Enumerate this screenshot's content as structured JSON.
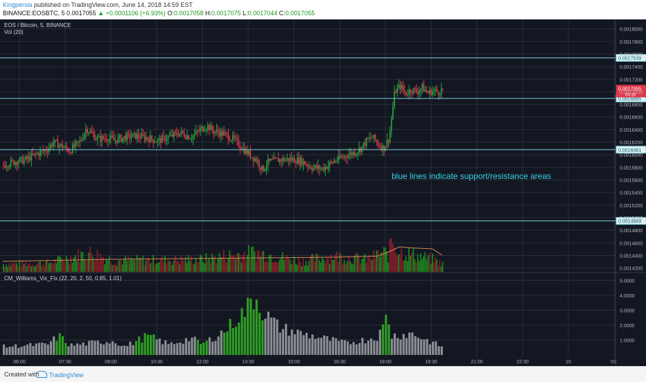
{
  "header": {
    "author": "Kingpersia",
    "published_text": "published on TradingView.com, June 14, 2018 14:59 EST",
    "ticker": "BINANCE:EOSBTC, 5",
    "last": "0.0017055",
    "change": "▲ +0.0001106 (+6.93%)",
    "o_label": "O:",
    "o_val": "0.0017058",
    "h_label": "H:",
    "h_val": "0.0017075",
    "l_label": "L:",
    "l_val": "0.0017044",
    "c_label": "C:",
    "c_val": "0.0017055"
  },
  "footer": {
    "created_with": "Created with",
    "brand": "TradingView"
  },
  "colors": {
    "bg": "#131722",
    "up": "#26a541",
    "down": "#e0384b",
    "hline": "#7fd0e0",
    "grid": "#2a2e39",
    "vix": "#8a8d93",
    "vix_hi": "#2e9e23",
    "vol_up": "#1e8a1e",
    "vol_down": "#8b1e28",
    "ma": "#d08a50",
    "annot": "#3ad4e6"
  },
  "chart_data": [
    {
      "type": "candlestick",
      "title": "EOS / Bitcoin, 5, BINANCE",
      "indicator_label": "Vol (20)",
      "y_ticks": [
        "0.0018000",
        "0.0017800",
        "0.0017600",
        "0.0017400",
        "0.0017200",
        "0.0017000",
        "0.0016800",
        "0.0016600",
        "0.0016400",
        "0.0016200",
        "0.0016000",
        "0.0015800",
        "0.0015600",
        "0.0015400",
        "0.0015200",
        "0.0015000",
        "0.0014800",
        "0.0014600",
        "0.0014400",
        "0.0014200"
      ],
      "ylim": [
        0.001413,
        0.001815
      ],
      "x_ticks": [
        "06:00",
        "07:30",
        "09:00",
        "10:30",
        "12:00",
        "13:30",
        "15:00",
        "16:30",
        "18:00",
        "19:30",
        "21:00",
        "22:30",
        "15",
        "01:"
      ],
      "horizontal_lines": [
        {
          "label": "0.0017539",
          "value": 0.0017539
        },
        {
          "label": "0.0016895",
          "value": 0.0016895
        },
        {
          "label": "0.0016081",
          "value": 0.0016081
        },
        {
          "label": "0.0014949",
          "value": 0.0014949
        }
      ],
      "last_price_label": "0.0017055",
      "countdown_label": "00:15",
      "annotation": "blue lines indicate support/resistance areas",
      "close_path": [
        [
          0,
          0.001584
        ],
        [
          10,
          0.001589
        ],
        [
          20,
          0.001592
        ],
        [
          30,
          0.001601
        ],
        [
          40,
          0.001609
        ],
        [
          45,
          0.00162
        ],
        [
          55,
          0.001612
        ],
        [
          60,
          0.001606
        ],
        [
          70,
          0.001622
        ],
        [
          75,
          0.001642
        ],
        [
          85,
          0.001625
        ],
        [
          95,
          0.001627
        ],
        [
          100,
          0.001623
        ],
        [
          110,
          0.001628
        ],
        [
          120,
          0.00163
        ],
        [
          130,
          0.001627
        ],
        [
          140,
          0.001622
        ],
        [
          150,
          0.001628
        ],
        [
          160,
          0.001635
        ],
        [
          170,
          0.001628
        ],
        [
          180,
          0.001641
        ],
        [
          185,
          0.001646
        ],
        [
          190,
          0.001638
        ],
        [
          200,
          0.001633
        ],
        [
          210,
          0.001623
        ],
        [
          220,
          0.001605
        ],
        [
          225,
          0.001598
        ],
        [
          230,
          0.001591
        ],
        [
          235,
          0.001576
        ],
        [
          240,
          0.001588
        ],
        [
          250,
          0.001592
        ],
        [
          260,
          0.001593
        ],
        [
          270,
          0.00159
        ],
        [
          280,
          0.00158
        ],
        [
          290,
          0.001578
        ],
        [
          300,
          0.00159
        ],
        [
          310,
          0.001598
        ],
        [
          320,
          0.001605
        ],
        [
          325,
          0.001612
        ],
        [
          330,
          0.001623
        ],
        [
          335,
          0.001628
        ],
        [
          340,
          0.001617
        ],
        [
          345,
          0.00161
        ],
        [
          350,
          0.001628
        ],
        [
          355,
          0.0017
        ],
        [
          360,
          0.001709
        ],
        [
          365,
          0.001697
        ],
        [
          370,
          0.001704
        ],
        [
          375,
          0.0017
        ],
        [
          380,
          0.001707
        ],
        [
          385,
          0.001698
        ],
        [
          390,
          0.001702
        ],
        [
          395,
          0.0017
        ],
        [
          400,
          0.001706
        ]
      ],
      "volume_profile": [
        [
          0,
          0.22
        ],
        [
          40,
          0.25
        ],
        [
          80,
          0.55
        ],
        [
          100,
          0.32
        ],
        [
          180,
          0.35
        ],
        [
          200,
          0.45
        ],
        [
          230,
          0.55
        ],
        [
          270,
          0.3
        ],
        [
          300,
          0.45
        ],
        [
          330,
          0.35
        ],
        [
          345,
          0.55
        ],
        [
          350,
          0.45
        ],
        [
          352,
          1.0
        ],
        [
          356,
          0.7
        ],
        [
          362,
          0.55
        ],
        [
          390,
          0.35
        ],
        [
          400,
          0.2
        ]
      ],
      "volume_ma": [
        [
          0,
          0.2
        ],
        [
          100,
          0.24
        ],
        [
          200,
          0.26
        ],
        [
          300,
          0.28
        ],
        [
          340,
          0.3
        ],
        [
          350,
          0.38
        ],
        [
          360,
          0.48
        ],
        [
          370,
          0.46
        ],
        [
          390,
          0.44
        ],
        [
          400,
          0.3
        ]
      ]
    },
    {
      "type": "bar",
      "title": "CM_Williams_Vix_Fix (22, 20, 2, 50, 0.85, 1.01)",
      "y_ticks": [
        "5.0000",
        "4.0000",
        "3.0000",
        "2.0000",
        "1.0000"
      ],
      "ylim": [
        0,
        5.3
      ],
      "profile": [
        [
          0,
          0.7
        ],
        [
          40,
          0.9
        ],
        [
          50,
          1.6
        ],
        [
          60,
          0.8
        ],
        [
          100,
          1.2
        ],
        [
          110,
          0.7
        ],
        [
          130,
          1.6
        ],
        [
          150,
          0.9
        ],
        [
          170,
          1.4
        ],
        [
          180,
          0.9
        ],
        [
          200,
          2.0
        ],
        [
          220,
          3.8
        ],
        [
          228,
          5.0
        ],
        [
          235,
          3.6
        ],
        [
          250,
          2.3
        ],
        [
          270,
          1.8
        ],
        [
          290,
          1.4
        ],
        [
          310,
          1.0
        ],
        [
          330,
          1.3
        ],
        [
          340,
          1.6
        ],
        [
          345,
          2.5
        ],
        [
          348,
          3.6
        ],
        [
          352,
          1.6
        ],
        [
          370,
          1.8
        ],
        [
          390,
          1.0
        ],
        [
          400,
          0.6
        ]
      ],
      "highlight_ranges": [
        [
          48,
          58
        ],
        [
          118,
          136
        ],
        [
          176,
          184
        ],
        [
          200,
          236
        ],
        [
          344,
          350
        ]
      ]
    }
  ]
}
